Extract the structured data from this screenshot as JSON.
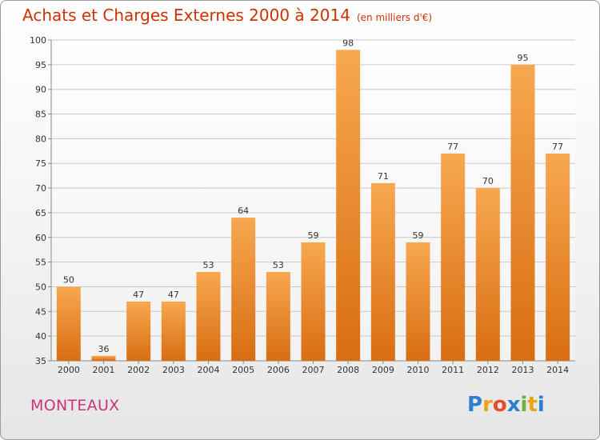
{
  "title": "Achats et Charges Externes 2000 à 2014",
  "unit": "(en milliers d'€)",
  "commune": "MONTEAUX",
  "logo": {
    "letters": [
      "P",
      "r",
      "o",
      "x",
      "i",
      "t",
      "i"
    ],
    "colors": [
      "#2d7fcf",
      "#e8a317",
      "#e84c2b",
      "#2d7fcf",
      "#6cb33e",
      "#e8a317",
      "#2d7fcf"
    ]
  },
  "colors": {
    "title": "#cc3300",
    "commune": "#cc3377",
    "bar_light": "#f7a84f",
    "bar_dark": "#d96d12"
  },
  "chart_data": {
    "type": "bar",
    "categories": [
      "2000",
      "2001",
      "2002",
      "2003",
      "2004",
      "2005",
      "2006",
      "2007",
      "2008",
      "2009",
      "2010",
      "2011",
      "2012",
      "2013",
      "2014"
    ],
    "values": [
      50,
      36,
      47,
      47,
      53,
      64,
      53,
      59,
      98,
      71,
      59,
      77,
      70,
      95,
      77
    ],
    "title": "Achats et Charges Externes 2000 à 2014",
    "ylim": [
      35,
      100
    ],
    "yticks": [
      35,
      40,
      45,
      50,
      55,
      60,
      65,
      70,
      75,
      80,
      85,
      90,
      95,
      100
    ],
    "grid": true
  }
}
